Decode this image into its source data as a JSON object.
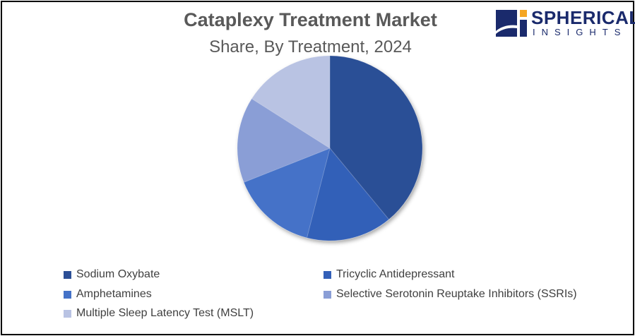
{
  "logo": {
    "line1": "SPHERICAL",
    "line2": "INSIGHTS"
  },
  "chart_data": {
    "type": "pie",
    "title": "Cataplexy Treatment Market",
    "subtitle": "Share, By Treatment, 2024",
    "categories": [
      "Sodium Oxybate",
      "Tricyclic Antidepressant",
      "Amphetamines",
      "Selective Serotonin Reuptake Inhibitors (SSRIs)",
      "Multiple Sleep Latency Test (MSLT)"
    ],
    "values": [
      39,
      15,
      15,
      15,
      16
    ],
    "colors": [
      "#2c4f96",
      "#3360b8",
      "#4472c8",
      "#8a9ed6",
      "#b9c3e3"
    ],
    "legend_position": "bottom"
  }
}
